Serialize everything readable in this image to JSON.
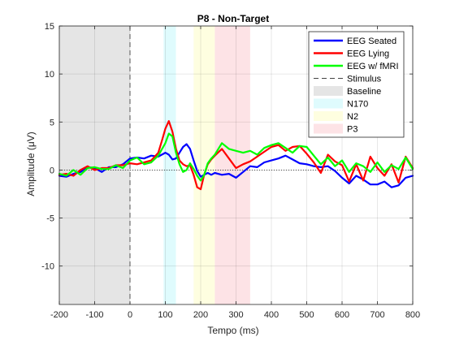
{
  "chart_data": {
    "type": "line",
    "title": "P8 - Non-Target",
    "xlabel": "Tempo (ms)",
    "ylabel": "Amplitude (μV)",
    "xlim": [
      -200,
      800
    ],
    "ylim": [
      -14,
      15
    ],
    "xticks": [
      -200,
      -100,
      0,
      100,
      200,
      300,
      400,
      500,
      600,
      700,
      800
    ],
    "yticks": [
      -10,
      -5,
      0,
      5,
      10,
      15
    ],
    "grid": true,
    "legend_position": "top-right",
    "zero_line": true,
    "stimulus_x": 0,
    "shaded_regions": [
      {
        "name": "Baseline",
        "x_start": -200,
        "x_end": 0,
        "color": "#e5e5e5"
      },
      {
        "name": "N170",
        "x_start": 95,
        "x_end": 130,
        "color": "#dffbfd"
      },
      {
        "name": "N2",
        "x_start": 180,
        "x_end": 240,
        "color": "#fefee0"
      },
      {
        "name": "P3",
        "x_start": 240,
        "x_end": 340,
        "color": "#fde3e6"
      }
    ],
    "legend": [
      "EEG Seated",
      "EEG Lying",
      "EEG w/ fMRI",
      "Stimulus",
      "Baseline",
      "N170",
      "N2",
      "P3"
    ],
    "series": [
      {
        "name": "EEG Seated",
        "color": "#0000ff",
        "x": [
          -200,
          -180,
          -160,
          -140,
          -120,
          -100,
          -80,
          -60,
          -40,
          -20,
          0,
          20,
          40,
          60,
          80,
          100,
          110,
          120,
          130,
          140,
          150,
          160,
          170,
          180,
          190,
          200,
          210,
          220,
          230,
          240,
          260,
          280,
          300,
          320,
          340,
          360,
          380,
          400,
          420,
          440,
          460,
          480,
          500,
          520,
          540,
          560,
          580,
          600,
          620,
          640,
          660,
          680,
          700,
          720,
          740,
          760,
          780,
          800
        ],
        "values": [
          -0.6,
          -0.7,
          -0.4,
          -0.2,
          0.3,
          0.2,
          -0.2,
          0.3,
          0.3,
          0.6,
          1.2,
          1.3,
          1.2,
          1.5,
          1.4,
          1.8,
          1.6,
          1.1,
          1.2,
          1.8,
          2.4,
          2.7,
          2.2,
          1.0,
          -0.1,
          -0.7,
          -0.5,
          -0.3,
          -0.5,
          -0.3,
          -0.5,
          -0.4,
          -0.8,
          -0.2,
          0.4,
          0.3,
          0.8,
          1.0,
          1.2,
          1.5,
          1.1,
          0.7,
          0.6,
          0.4,
          0.3,
          0.4,
          -0.1,
          -0.8,
          -1.4,
          -0.6,
          -1.0,
          -1.5,
          -1.5,
          -1.2,
          -1.8,
          -1.6,
          -0.8,
          -0.6
        ]
      },
      {
        "name": "EEG Lying",
        "color": "#ff0000",
        "x": [
          -200,
          -180,
          -160,
          -140,
          -120,
          -100,
          -80,
          -60,
          -40,
          -20,
          0,
          20,
          40,
          60,
          80,
          90,
          100,
          110,
          120,
          130,
          140,
          150,
          160,
          170,
          180,
          190,
          200,
          210,
          220,
          230,
          240,
          260,
          280,
          300,
          320,
          340,
          360,
          380,
          400,
          420,
          440,
          460,
          480,
          500,
          520,
          540,
          560,
          580,
          600,
          620,
          640,
          660,
          680,
          700,
          720,
          740,
          760,
          780,
          800
        ],
        "values": [
          -0.5,
          -0.4,
          -0.6,
          0.0,
          0.4,
          0.0,
          0.2,
          0.2,
          0.5,
          0.5,
          0.7,
          0.6,
          0.8,
          1.0,
          1.8,
          3.0,
          4.3,
          5.1,
          4.0,
          2.2,
          1.0,
          0.6,
          0.4,
          0.5,
          -0.5,
          -1.8,
          -2.0,
          -0.5,
          0.6,
          1.1,
          1.5,
          2.2,
          1.2,
          0.2,
          0.6,
          0.9,
          1.4,
          1.9,
          2.4,
          2.6,
          2.0,
          2.4,
          2.5,
          1.7,
          0.8,
          -0.3,
          1.6,
          0.9,
          0.5,
          -1.2,
          0.6,
          -1.1,
          1.4,
          0.2,
          -0.6,
          0.6,
          -1.3,
          1.4,
          0.2
        ]
      },
      {
        "name": "EEG w/ fMRI",
        "color": "#00ff00",
        "x": [
          -200,
          -180,
          -160,
          -140,
          -120,
          -100,
          -80,
          -60,
          -40,
          -20,
          0,
          20,
          40,
          60,
          80,
          100,
          110,
          120,
          130,
          140,
          150,
          160,
          170,
          180,
          190,
          200,
          210,
          220,
          230,
          240,
          260,
          280,
          300,
          320,
          340,
          360,
          380,
          400,
          420,
          440,
          460,
          480,
          500,
          520,
          540,
          560,
          580,
          600,
          620,
          640,
          660,
          680,
          700,
          720,
          740,
          760,
          780,
          800
        ],
        "values": [
          -0.4,
          -0.6,
          0.0,
          -0.5,
          0.2,
          0.3,
          0.1,
          0.1,
          0.5,
          0.2,
          1.0,
          1.3,
          0.6,
          0.8,
          1.5,
          2.8,
          3.8,
          3.5,
          1.8,
          0.6,
          -0.2,
          0.0,
          0.7,
          0.1,
          -0.6,
          -1.1,
          -0.5,
          0.7,
          1.2,
          1.6,
          2.8,
          2.2,
          2.0,
          1.8,
          2.0,
          1.6,
          2.3,
          2.6,
          2.8,
          2.3,
          1.8,
          2.5,
          2.4,
          1.5,
          0.6,
          1.3,
          0.4,
          1.0,
          -0.2,
          0.7,
          0.4,
          -0.2,
          0.8,
          -0.2,
          0.5,
          0.1,
          1.3,
          0.1
        ]
      }
    ]
  }
}
